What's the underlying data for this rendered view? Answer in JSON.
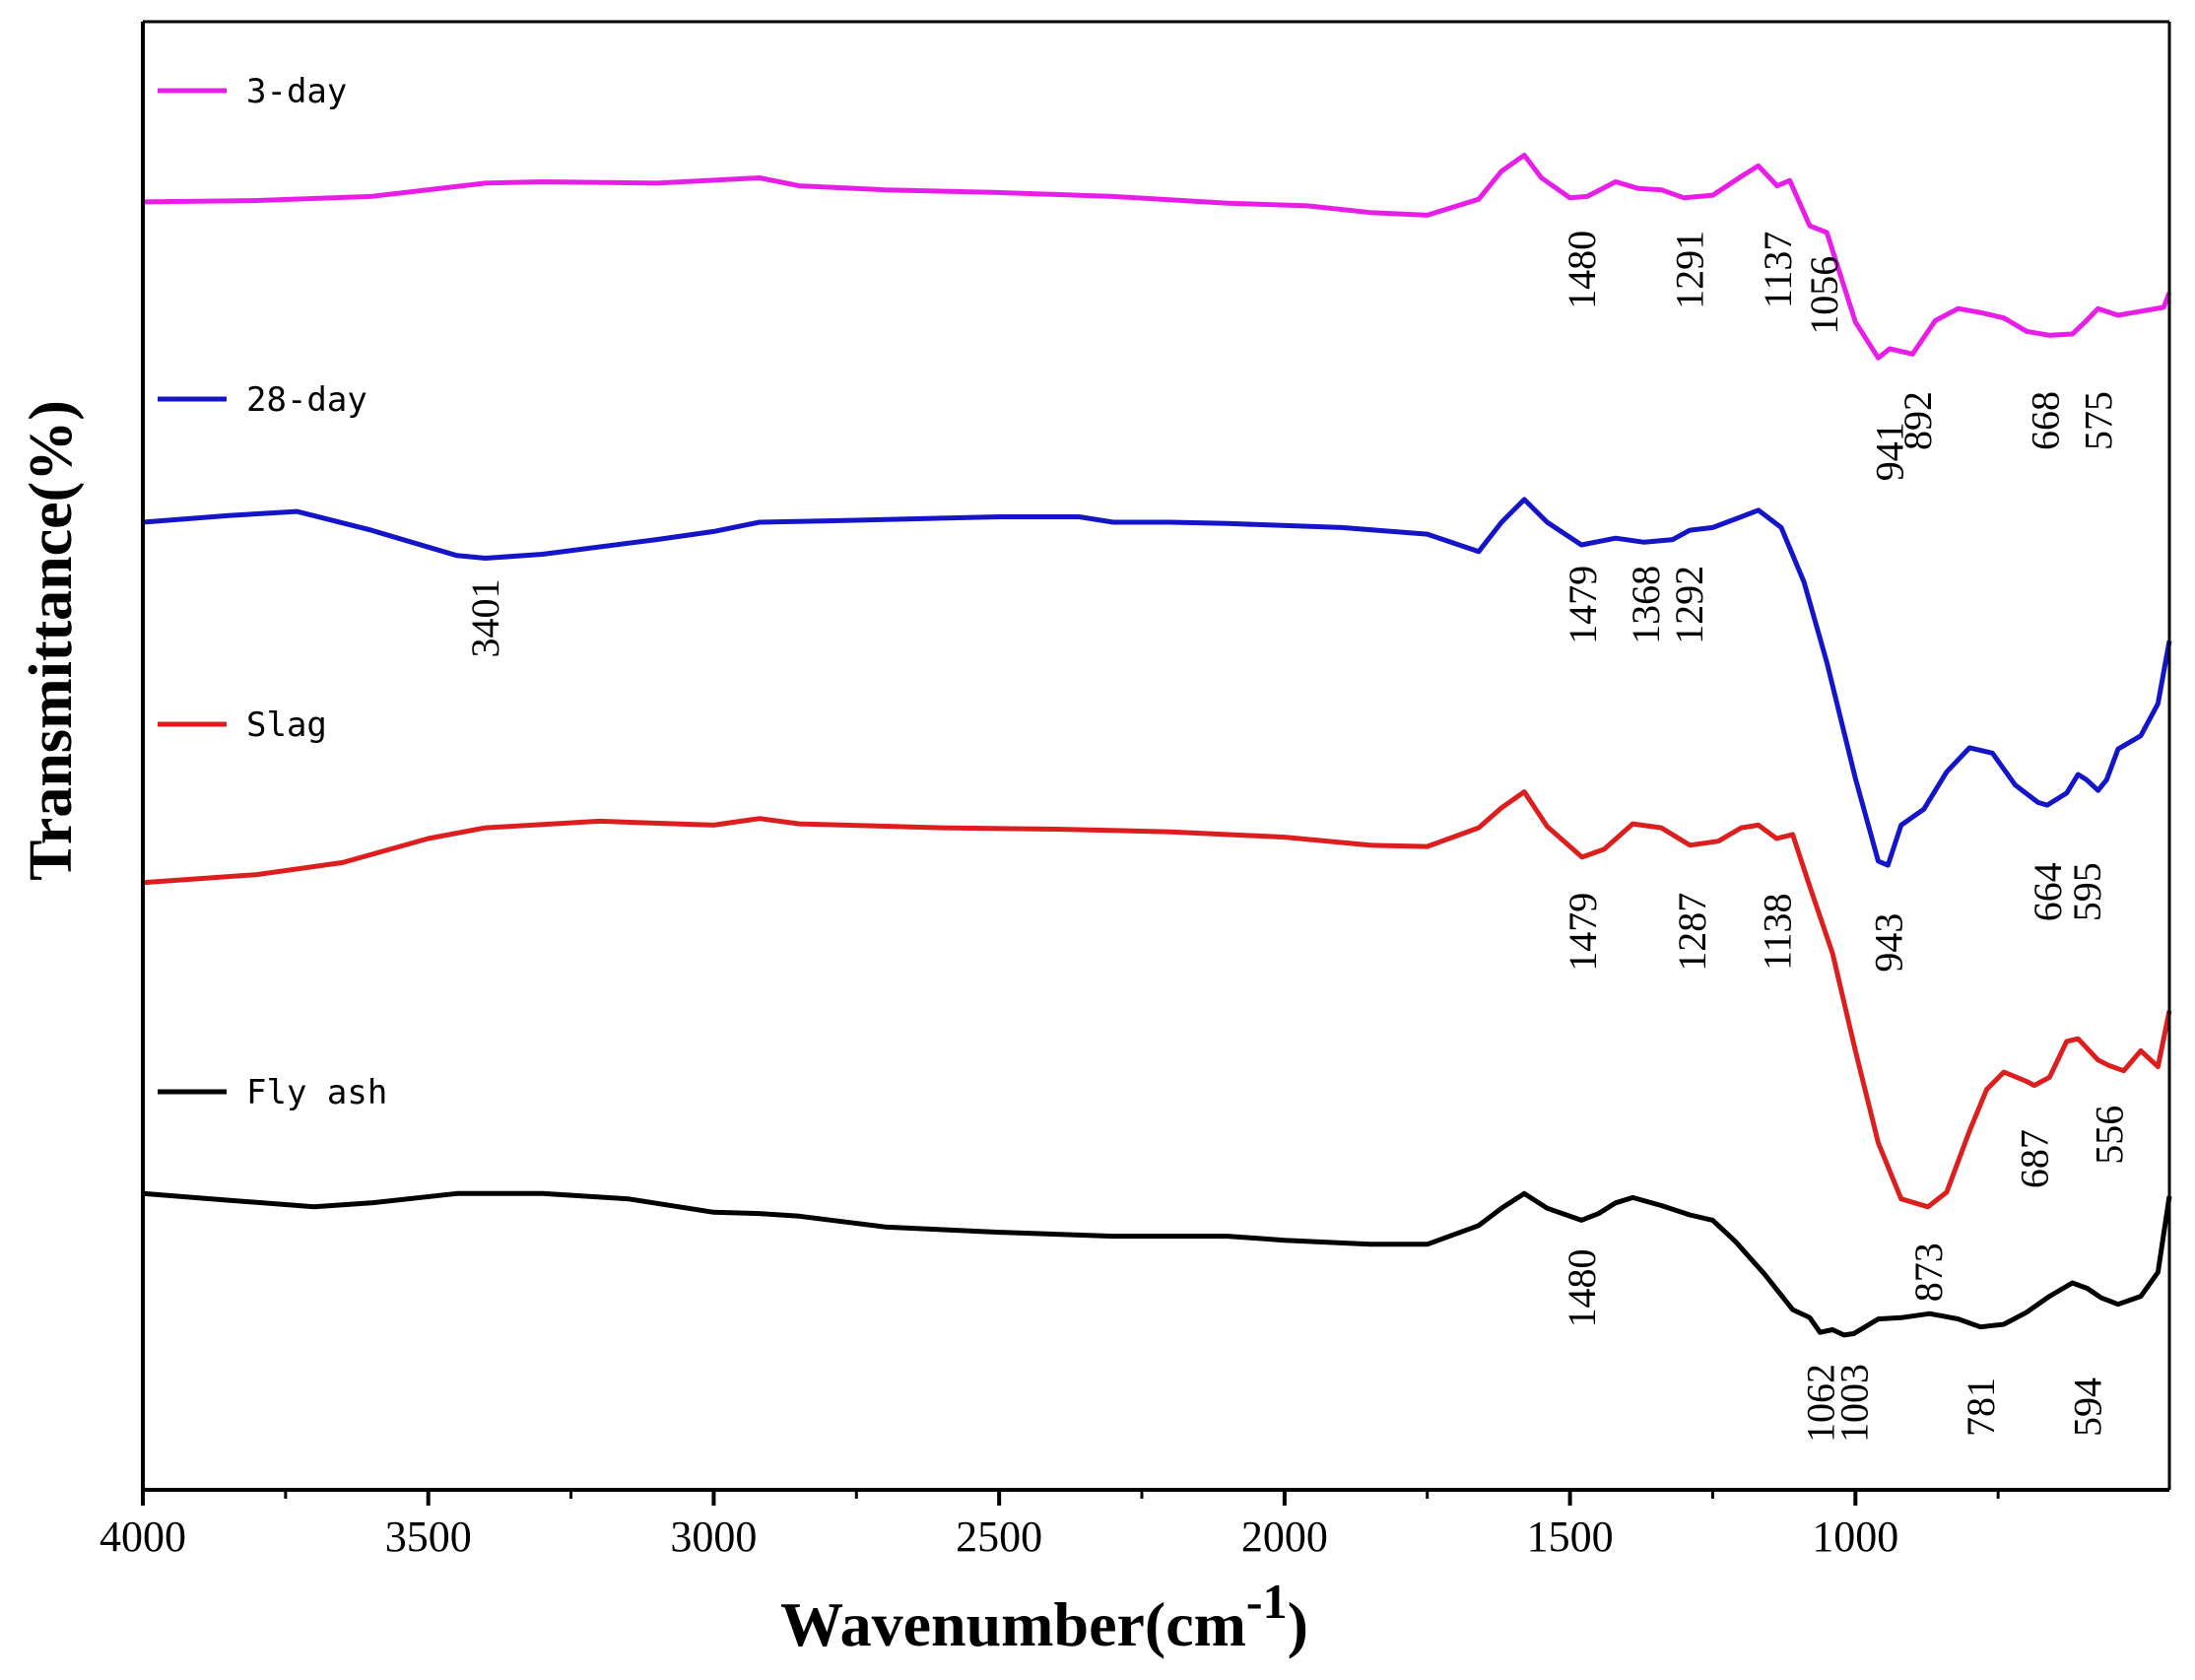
{
  "chart_data": {
    "type": "line",
    "xlabel": "Wavenumber(cm",
    "xlabel_sup": "-1",
    "xlabel_close": ")",
    "ylabel": "Transmittance(%)",
    "xlim": [
      4000,
      450
    ],
    "x_reversed": true,
    "x_ticks": [
      4000,
      3500,
      3000,
      2500,
      2000,
      1500,
      1000
    ],
    "y_ticks_shown": false,
    "grid": false,
    "legend_placement": "inline-left",
    "series": [
      {
        "name": "3-day",
        "color": "#e81ee8",
        "points": [
          [
            4000,
            86.5
          ],
          [
            3800,
            86.6
          ],
          [
            3600,
            86.9
          ],
          [
            3400,
            87.9
          ],
          [
            3300,
            88.0
          ],
          [
            3100,
            87.9
          ],
          [
            2920,
            88.3
          ],
          [
            2850,
            87.7
          ],
          [
            2700,
            87.4
          ],
          [
            2500,
            87.2
          ],
          [
            2300,
            86.9
          ],
          [
            2100,
            86.4
          ],
          [
            1960,
            86.2
          ],
          [
            1850,
            85.7
          ],
          [
            1750,
            85.5
          ],
          [
            1660,
            86.7
          ],
          [
            1620,
            88.8
          ],
          [
            1580,
            90.0
          ],
          [
            1550,
            88.3
          ],
          [
            1500,
            86.8
          ],
          [
            1470,
            86.9
          ],
          [
            1420,
            88.0
          ],
          [
            1380,
            87.5
          ],
          [
            1340,
            87.4
          ],
          [
            1300,
            86.8
          ],
          [
            1250,
            87.0
          ],
          [
            1200,
            88.4
          ],
          [
            1170,
            89.2
          ],
          [
            1137,
            87.7
          ],
          [
            1115,
            88.1
          ],
          [
            1080,
            84.7
          ],
          [
            1050,
            84.2
          ],
          [
            1000,
            77.5
          ],
          [
            960,
            74.8
          ],
          [
            940,
            75.5
          ],
          [
            900,
            75.1
          ],
          [
            860,
            77.6
          ],
          [
            820,
            78.5
          ],
          [
            780,
            78.2
          ],
          [
            740,
            77.8
          ],
          [
            700,
            76.8
          ],
          [
            660,
            76.5
          ],
          [
            620,
            76.6
          ],
          [
            600,
            77.4
          ],
          [
            575,
            78.5
          ],
          [
            540,
            78.0
          ],
          [
            500,
            78.3
          ],
          [
            460,
            78.6
          ],
          [
            450,
            79.7
          ]
        ]
      },
      {
        "name": "28-day",
        "color": "#1414c8",
        "points": [
          [
            4000,
            62.5
          ],
          [
            3850,
            63.0
          ],
          [
            3730,
            63.3
          ],
          [
            3600,
            61.9
          ],
          [
            3450,
            60.0
          ],
          [
            3400,
            59.8
          ],
          [
            3300,
            60.1
          ],
          [
            3100,
            61.2
          ],
          [
            3000,
            61.8
          ],
          [
            2920,
            62.5
          ],
          [
            2800,
            62.6
          ],
          [
            2600,
            62.8
          ],
          [
            2500,
            62.9
          ],
          [
            2360,
            62.9
          ],
          [
            2300,
            62.5
          ],
          [
            2200,
            62.5
          ],
          [
            2100,
            62.4
          ],
          [
            1900,
            62.1
          ],
          [
            1750,
            61.6
          ],
          [
            1660,
            60.3
          ],
          [
            1620,
            62.5
          ],
          [
            1580,
            64.2
          ],
          [
            1540,
            62.5
          ],
          [
            1480,
            60.8
          ],
          [
            1420,
            61.3
          ],
          [
            1370,
            61.0
          ],
          [
            1320,
            61.2
          ],
          [
            1290,
            61.9
          ],
          [
            1250,
            62.1
          ],
          [
            1200,
            62.9
          ],
          [
            1170,
            63.4
          ],
          [
            1130,
            62.1
          ],
          [
            1090,
            58.0
          ],
          [
            1050,
            52.0
          ],
          [
            1000,
            43.3
          ],
          [
            960,
            37.1
          ],
          [
            943,
            36.8
          ],
          [
            920,
            39.8
          ],
          [
            880,
            41.0
          ],
          [
            840,
            43.8
          ],
          [
            800,
            45.6
          ],
          [
            760,
            45.2
          ],
          [
            720,
            42.8
          ],
          [
            680,
            41.5
          ],
          [
            664,
            41.3
          ],
          [
            630,
            42.2
          ],
          [
            610,
            43.6
          ],
          [
            595,
            43.2
          ],
          [
            575,
            42.4
          ],
          [
            560,
            43.2
          ],
          [
            540,
            45.5
          ],
          [
            500,
            46.5
          ],
          [
            470,
            48.9
          ],
          [
            450,
            53.6
          ]
        ]
      },
      {
        "name": "Slag",
        "color": "#dc1e1e",
        "points": [
          [
            4000,
            35.5
          ],
          [
            3800,
            36.1
          ],
          [
            3650,
            37.0
          ],
          [
            3500,
            38.8
          ],
          [
            3400,
            39.6
          ],
          [
            3200,
            40.1
          ],
          [
            3000,
            39.8
          ],
          [
            2920,
            40.3
          ],
          [
            2850,
            39.9
          ],
          [
            2600,
            39.6
          ],
          [
            2400,
            39.5
          ],
          [
            2200,
            39.3
          ],
          [
            2000,
            38.9
          ],
          [
            1850,
            38.3
          ],
          [
            1750,
            38.2
          ],
          [
            1660,
            39.6
          ],
          [
            1620,
            41.1
          ],
          [
            1580,
            42.3
          ],
          [
            1540,
            39.7
          ],
          [
            1479,
            37.4
          ],
          [
            1440,
            38.0
          ],
          [
            1390,
            39.9
          ],
          [
            1340,
            39.6
          ],
          [
            1290,
            38.3
          ],
          [
            1240,
            38.6
          ],
          [
            1200,
            39.6
          ],
          [
            1170,
            39.8
          ],
          [
            1138,
            38.8
          ],
          [
            1110,
            39.1
          ],
          [
            1080,
            35.2
          ],
          [
            1040,
            30.2
          ],
          [
            1000,
            22.9
          ],
          [
            960,
            16.0
          ],
          [
            920,
            11.8
          ],
          [
            873,
            11.2
          ],
          [
            840,
            12.3
          ],
          [
            800,
            16.9
          ],
          [
            770,
            20.0
          ],
          [
            740,
            21.3
          ],
          [
            700,
            20.6
          ],
          [
            687,
            20.3
          ],
          [
            660,
            20.9
          ],
          [
            630,
            23.6
          ],
          [
            610,
            23.8
          ],
          [
            575,
            22.2
          ],
          [
            556,
            21.8
          ],
          [
            530,
            21.4
          ],
          [
            500,
            22.9
          ],
          [
            470,
            21.7
          ],
          [
            450,
            25.9
          ]
        ]
      },
      {
        "name": "Fly ash",
        "color": "#000000",
        "points": [
          [
            4000,
            12.2
          ],
          [
            3850,
            11.7
          ],
          [
            3700,
            11.2
          ],
          [
            3600,
            11.5
          ],
          [
            3450,
            12.2
          ],
          [
            3300,
            12.2
          ],
          [
            3150,
            11.8
          ],
          [
            3000,
            10.8
          ],
          [
            2920,
            10.7
          ],
          [
            2850,
            10.5
          ],
          [
            2700,
            9.7
          ],
          [
            2500,
            9.3
          ],
          [
            2300,
            9.0
          ],
          [
            2100,
            9.0
          ],
          [
            2000,
            8.7
          ],
          [
            1850,
            8.4
          ],
          [
            1750,
            8.4
          ],
          [
            1660,
            9.8
          ],
          [
            1620,
            11.1
          ],
          [
            1580,
            12.2
          ],
          [
            1540,
            11.1
          ],
          [
            1480,
            10.2
          ],
          [
            1450,
            10.7
          ],
          [
            1420,
            11.5
          ],
          [
            1390,
            11.9
          ],
          [
            1340,
            11.3
          ],
          [
            1290,
            10.6
          ],
          [
            1250,
            10.2
          ],
          [
            1210,
            8.6
          ],
          [
            1160,
            6.2
          ],
          [
            1110,
            3.5
          ],
          [
            1080,
            2.9
          ],
          [
            1062,
            1.8
          ],
          [
            1040,
            2.0
          ],
          [
            1020,
            1.6
          ],
          [
            1003,
            1.7
          ],
          [
            960,
            2.8
          ],
          [
            920,
            2.9
          ],
          [
            870,
            3.2
          ],
          [
            820,
            2.8
          ],
          [
            781,
            2.2
          ],
          [
            740,
            2.4
          ],
          [
            700,
            3.3
          ],
          [
            660,
            4.5
          ],
          [
            620,
            5.5
          ],
          [
            594,
            5.1
          ],
          [
            570,
            4.4
          ],
          [
            540,
            3.9
          ],
          [
            500,
            4.5
          ],
          [
            470,
            6.3
          ],
          [
            450,
            12.0
          ]
        ]
      }
    ],
    "legend": [
      {
        "name": "3-day",
        "color": "#e81ee8"
      },
      {
        "name": "28-day",
        "color": "#1414c8"
      },
      {
        "name": "Slag",
        "color": "#dc1e1e"
      },
      {
        "name": "Fly ash",
        "color": "#000000"
      }
    ],
    "annotations": [
      {
        "text": "1480",
        "x": 1480,
        "y": 81.4
      },
      {
        "text": "1291",
        "x": 1291,
        "y": 81.4
      },
      {
        "text": "1137",
        "x": 1137,
        "y": 81.4
      },
      {
        "text": "1056",
        "x": 1056,
        "y": 79.5
      },
      {
        "text": "941",
        "x": 941,
        "y": 67.8
      },
      {
        "text": "892",
        "x": 892,
        "y": 70.1
      },
      {
        "text": "668",
        "x": 668,
        "y": 70.1
      },
      {
        "text": "575",
        "x": 575,
        "y": 70.1
      },
      {
        "text": "3401",
        "x": 3401,
        "y": 55.3
      },
      {
        "text": "1479",
        "x": 1479,
        "y": 56.3
      },
      {
        "text": "1368",
        "x": 1368,
        "y": 56.3
      },
      {
        "text": "1292",
        "x": 1292,
        "y": 56.3
      },
      {
        "text": "943",
        "x": 943,
        "y": 31.0
      },
      {
        "text": "664",
        "x": 664,
        "y": 34.8
      },
      {
        "text": "595",
        "x": 595,
        "y": 34.8
      },
      {
        "text": "1479",
        "x": 1479,
        "y": 31.8
      },
      {
        "text": "1287",
        "x": 1287,
        "y": 31.8
      },
      {
        "text": "1138",
        "x": 1138,
        "y": 31.8
      },
      {
        "text": "687",
        "x": 687,
        "y": 14.8
      },
      {
        "text": "556",
        "x": 556,
        "y": 16.6
      },
      {
        "text": "873",
        "x": 873,
        "y": 6.3
      },
      {
        "text": "1480",
        "x": 1480,
        "y": 5.1
      },
      {
        "text": "1062",
        "x": 1062,
        "y": -3.5
      },
      {
        "text": "1003",
        "x": 1003,
        "y": -3.5
      },
      {
        "text": "781",
        "x": 781,
        "y": -3.8
      },
      {
        "text": "594",
        "x": 594,
        "y": -3.8
      }
    ]
  }
}
